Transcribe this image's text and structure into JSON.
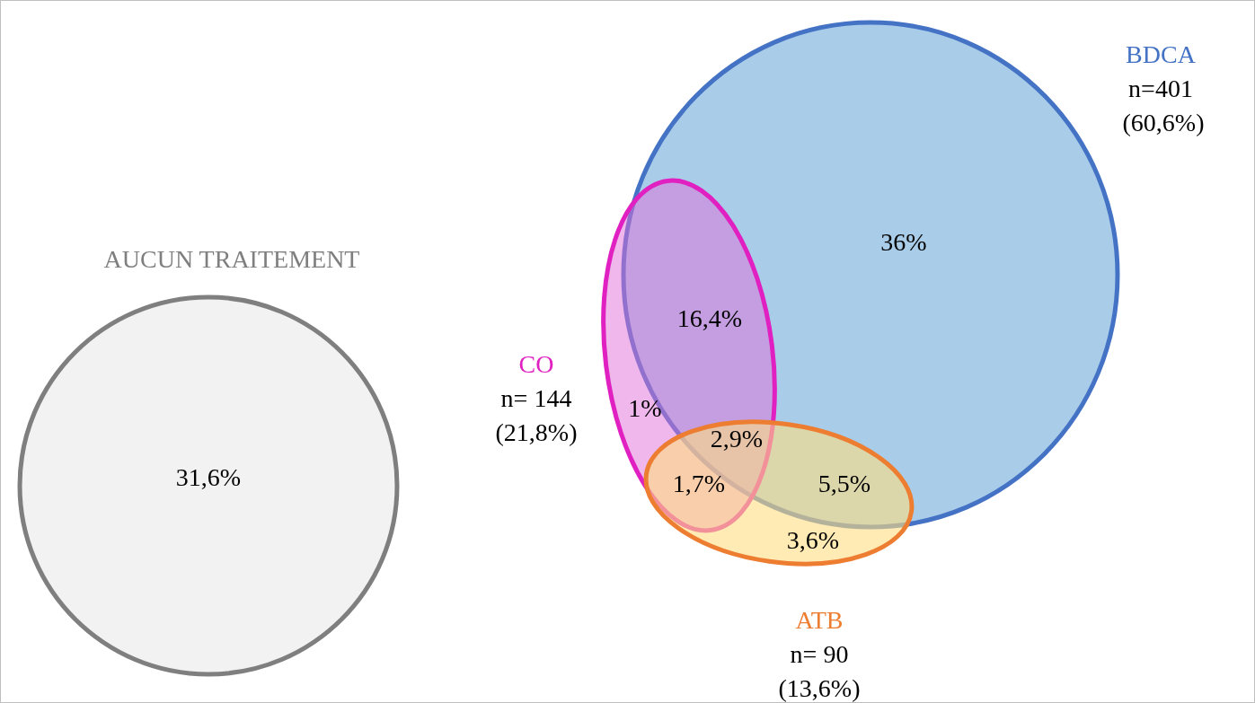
{
  "chart_data": {
    "type": "other",
    "categories": [
      "AUCUN TRAITEMENT",
      "BDCA",
      "CO",
      "ATB"
    ],
    "colors": [
      "#7f7f7f",
      "#4472c4",
      "#e020c0",
      "#ed7d31"
    ],
    "series": [
      {
        "values": [
          null,
          401,
          144,
          90
        ],
        "value_labels": [
          null,
          "n=401",
          "n= 144",
          "n= 90"
        ]
      },
      {
        "values": [
          31.6,
          60.6,
          21.8,
          13.6
        ],
        "value_labels": [
          "31,6%",
          "(60,6%)",
          "(21,8%)",
          "(13,6%)"
        ]
      }
    ],
    "annotations": [
      "36%",
      "16,4%",
      "1%",
      "2,9%",
      "1,7%",
      "5,5%",
      "3,6%"
    ]
  }
}
